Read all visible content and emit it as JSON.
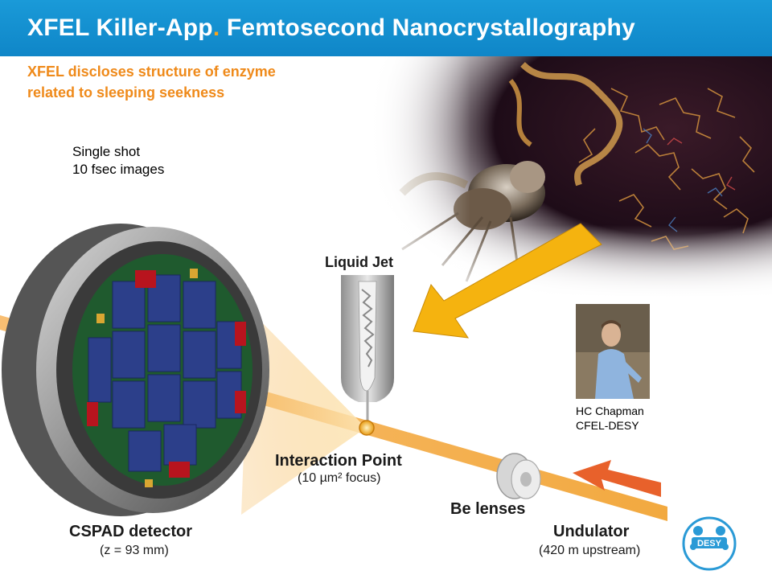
{
  "header": {
    "title_part1": "XFEL Killer-App",
    "title_dot": ".",
    "title_part2": " Femtosecond Nanocrystallography"
  },
  "subtitle": {
    "line1": "XFEL discloses structure of enzyme",
    "line2": "related to sleeping seekness"
  },
  "shot_info": {
    "line1": "Single shot",
    "line2": "10 fsec images"
  },
  "diagram": {
    "liquid_jet": "Liquid Jet",
    "interaction_point": "Interaction Point",
    "interaction_focus": "(10 µm² focus)",
    "be_lenses": "Be lenses",
    "cspad": "CSPAD detector",
    "cspad_z": "(z = 93 mm)",
    "undulator": "Undulator",
    "undulator_dist": "(420 m upstream)"
  },
  "credit": {
    "line1": "HC Chapman",
    "line2": "CFEL-DESY"
  },
  "logo": {
    "text": "DESY"
  },
  "colors": {
    "header_blue": "#1a9ad8",
    "subtitle_orange": "#ef8a1a",
    "arrow_yellow": "#f5b30f",
    "arrow_orange": "#e8612b",
    "beam": "#f5a623"
  }
}
